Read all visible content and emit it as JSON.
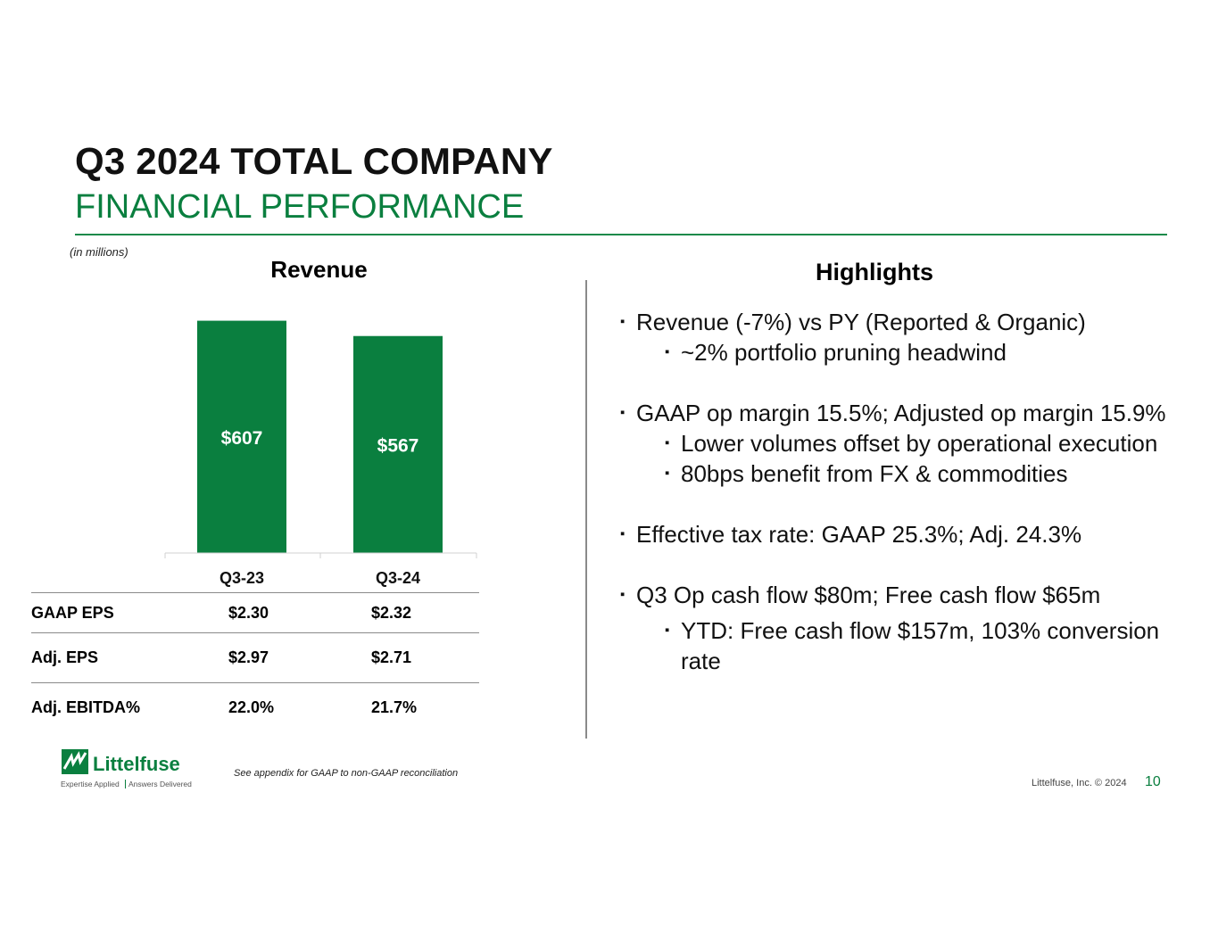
{
  "slide": {
    "title": "Q3 2024 TOTAL COMPANY",
    "subtitle": "FINANCIAL PERFORMANCE",
    "units_note": "(in millions)",
    "brand_green": "#0a7f3f"
  },
  "revenue": {
    "heading": "Revenue"
  },
  "chart_data": {
    "type": "bar",
    "title": "Revenue",
    "categories": [
      "Q3-23",
      "Q3-24"
    ],
    "values": [
      607,
      567
    ],
    "data_labels": [
      "$607",
      "$567"
    ],
    "ylim": [
      0,
      620
    ],
    "xlabel": "",
    "ylabel": "",
    "grid": false,
    "bar_color": "#0a7f3f"
  },
  "metrics": {
    "rows": [
      {
        "label": "GAAP EPS",
        "q3_23": "$2.30",
        "q3_24": "$2.32"
      },
      {
        "label": "Adj. EPS",
        "q3_23": "$2.97",
        "q3_24": "$2.71"
      },
      {
        "label": "Adj. EBITDA%",
        "q3_23": "22.0%",
        "q3_24": "21.7%"
      }
    ]
  },
  "highlights": {
    "heading": "Highlights",
    "bullet_glyph": "▪",
    "items": [
      {
        "text": "Revenue (-7%) vs PY (Reported & Organic)",
        "subs": [
          "~2% portfolio pruning headwind"
        ]
      },
      {
        "text": "GAAP op margin 15.5%; Adjusted op margin 15.9%",
        "subs": [
          "Lower volumes offset by operational execution",
          "80bps benefit from FX & commodities"
        ]
      },
      {
        "text": "Effective tax rate: GAAP 25.3%; Adj. 24.3%",
        "subs": []
      },
      {
        "text": "Q3 Op cash flow $80m; Free cash flow $65m",
        "subs": [
          "YTD: Free cash flow $157m, 103% conversion rate"
        ]
      }
    ]
  },
  "footer": {
    "logo_name": "Littelfuse",
    "logo_tagline_left": "Expertise Applied",
    "logo_tagline_right": "Answers Delivered",
    "footnote": "See appendix for GAAP to non-GAAP reconciliation",
    "copyright": "Littelfuse, Inc. © 2024",
    "page_number": "10"
  }
}
